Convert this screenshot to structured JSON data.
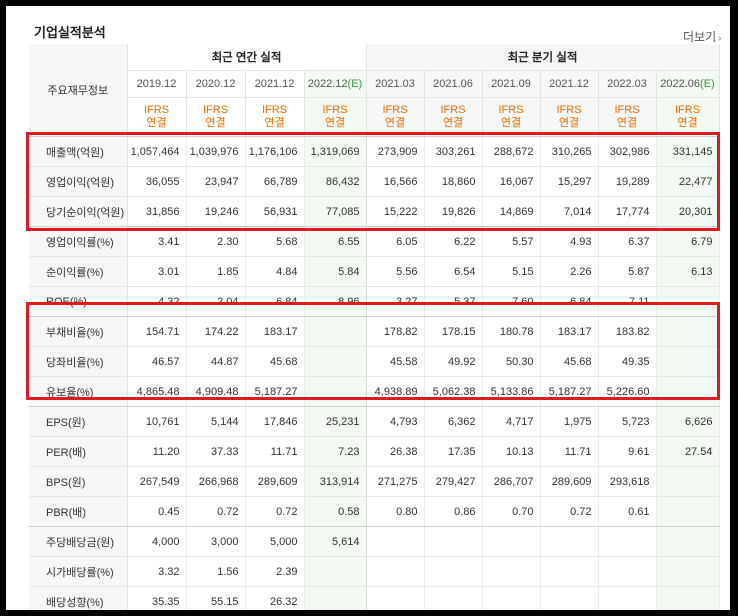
{
  "title": "기업실적분석",
  "more_label": "더보기",
  "table": {
    "corner_label": "주요재무정보",
    "annual_group": "최근 연간 실적",
    "quarterly_group": "최근 분기 실적",
    "periods": [
      "2019.12",
      "2020.12",
      "2021.12",
      "2022.12(E)",
      "2021.03",
      "2021.06",
      "2021.09",
      "2021.12",
      "2022.03",
      "2022.06(E)"
    ],
    "basis_line1": "IFRS",
    "basis_line2": "연결",
    "rows": [
      {
        "label": "매출액(억원)",
        "values": [
          "1,057,464",
          "1,039,976",
          "1,176,106",
          "1,319,069",
          "273,909",
          "303,261",
          "288,672",
          "310,265",
          "302,986",
          "331,145"
        ]
      },
      {
        "label": "영업이익(억원)",
        "values": [
          "36,055",
          "23,947",
          "66,789",
          "86,432",
          "16,566",
          "18,860",
          "16,067",
          "15,297",
          "19,289",
          "22,477"
        ]
      },
      {
        "label": "당기순이익(억원)",
        "values": [
          "31,856",
          "19,246",
          "56,931",
          "77,085",
          "15,222",
          "19,826",
          "14,869",
          "7,014",
          "17,774",
          "20,301"
        ]
      },
      {
        "label": "영업이익률(%)",
        "values": [
          "3.41",
          "2.30",
          "5.68",
          "6.55",
          "6.05",
          "6.22",
          "5.57",
          "4.93",
          "6.37",
          "6.79"
        ]
      },
      {
        "label": "순이익률(%)",
        "values": [
          "3.01",
          "1.85",
          "4.84",
          "5.84",
          "5.56",
          "6.54",
          "5.15",
          "2.26",
          "5.87",
          "6.13"
        ]
      },
      {
        "label": "ROE(%)",
        "values": [
          "4.32",
          "2.04",
          "6.84",
          "8.96",
          "3.27",
          "5.37",
          "7.60",
          "6.84",
          "7.11",
          ""
        ]
      },
      {
        "label": "부채비율(%)",
        "values": [
          "154.71",
          "174.22",
          "183.17",
          "",
          "178.82",
          "178.15",
          "180.78",
          "183.17",
          "183.82",
          ""
        ]
      },
      {
        "label": "당좌비율(%)",
        "values": [
          "46.57",
          "44.87",
          "45.68",
          "",
          "45.58",
          "49.92",
          "50.30",
          "45.68",
          "49.35",
          ""
        ]
      },
      {
        "label": "유보율(%)",
        "values": [
          "4,865.48",
          "4,909.48",
          "5,187.27",
          "",
          "4,938.89",
          "5,062.38",
          "5,133.86",
          "5,187.27",
          "5,226.60",
          ""
        ]
      },
      {
        "label": "EPS(원)",
        "values": [
          "10,761",
          "5,144",
          "17,846",
          "25,231",
          "4,793",
          "6,362",
          "4,717",
          "1,975",
          "5,723",
          "6,626"
        ]
      },
      {
        "label": "PER(배)",
        "values": [
          "11.20",
          "37.33",
          "11.71",
          "7.23",
          "26.38",
          "17.35",
          "10.13",
          "11.71",
          "9.61",
          "27.54"
        ]
      },
      {
        "label": "BPS(원)",
        "values": [
          "267,549",
          "266,968",
          "289,609",
          "313,914",
          "271,275",
          "279,427",
          "286,707",
          "289,609",
          "293,618",
          ""
        ]
      },
      {
        "label": "PBR(배)",
        "values": [
          "0.45",
          "0.72",
          "0.72",
          "0.58",
          "0.80",
          "0.86",
          "0.70",
          "0.72",
          "0.61",
          ""
        ]
      },
      {
        "label": "주당배당금(원)",
        "values": [
          "4,000",
          "3,000",
          "5,000",
          "5,614",
          "",
          "",
          "",
          "",
          "",
          ""
        ]
      },
      {
        "label": "시가배당률(%)",
        "values": [
          "3.32",
          "1.56",
          "2.39",
          "",
          "",
          "",
          "",
          "",
          "",
          ""
        ]
      },
      {
        "label": "배당성향(%)",
        "values": [
          "35.35",
          "55.15",
          "26.32",
          "",
          "",
          "",
          "",
          "",
          "",
          ""
        ]
      }
    ]
  },
  "colors": {
    "highlight": "#e11a22",
    "ifrs": "#f06c00",
    "estimate": "#3a9a3a"
  }
}
